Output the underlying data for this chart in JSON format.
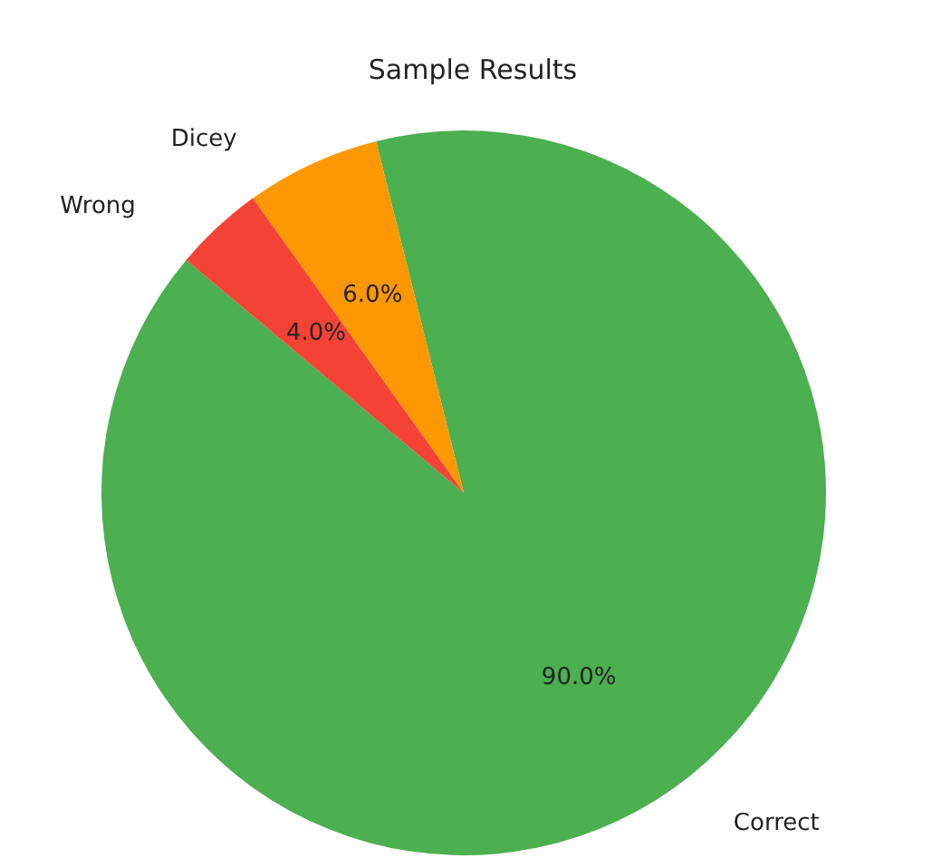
{
  "chart_data": {
    "type": "pie",
    "title": "Sample Results",
    "categories": [
      "Correct",
      "Dicey",
      "Wrong"
    ],
    "values": [
      90,
      6,
      4
    ],
    "colors": [
      "#4caf50",
      "#ff9800",
      "#f44336"
    ],
    "value_labels": [
      "90.0%",
      "6.0%",
      "4.0%"
    ]
  }
}
